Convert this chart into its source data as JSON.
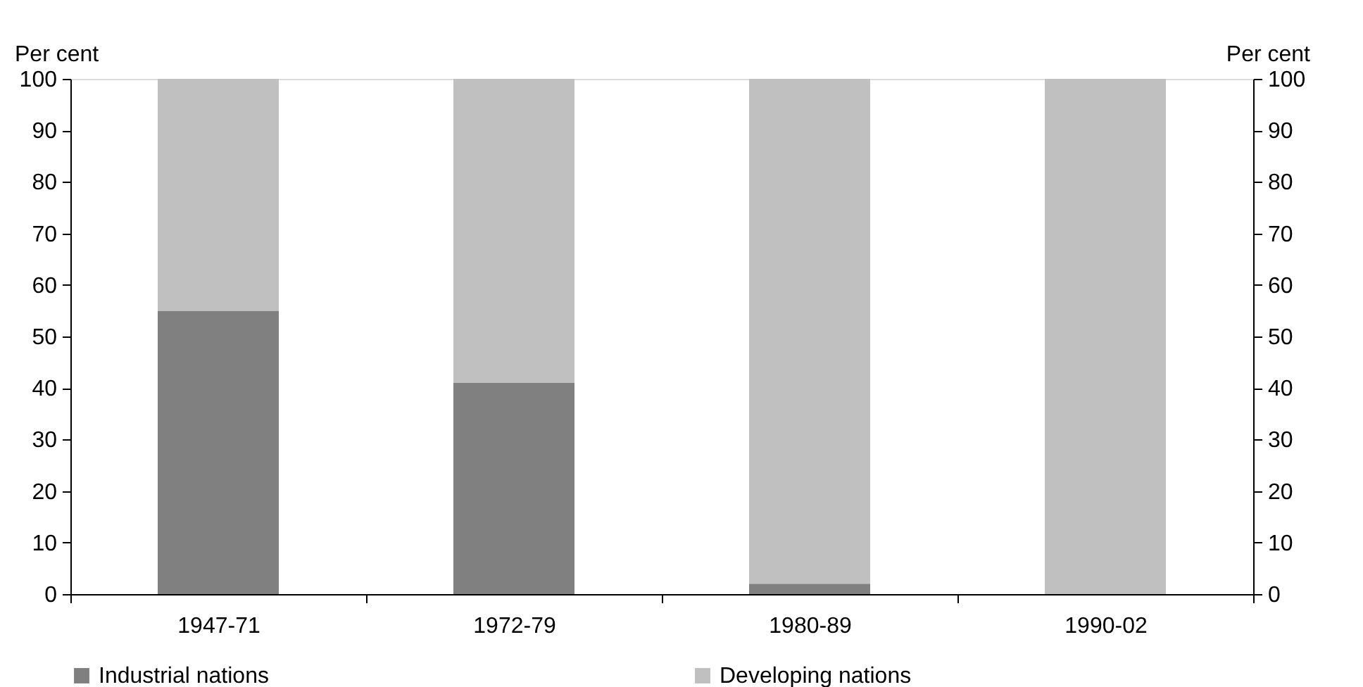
{
  "chart_data": {
    "type": "bar",
    "stacked": true,
    "categories": [
      "1947-71",
      "1972-79",
      "1980-89",
      "1990-02"
    ],
    "series": [
      {
        "name": "Industrial nations",
        "color": "#808080",
        "values": [
          55,
          41,
          2,
          0
        ]
      },
      {
        "name": "Developing nations",
        "color": "#c0c0c0",
        "values": [
          45,
          59,
          98,
          100
        ]
      }
    ],
    "ylabel": "Per cent",
    "y2label": "Per cent",
    "ylim": [
      0,
      100
    ],
    "yticks": [
      0,
      10,
      20,
      30,
      40,
      50,
      60,
      70,
      80,
      90,
      100
    ],
    "y2lim": [
      0,
      100
    ],
    "y2ticks": [
      0,
      10,
      20,
      30,
      40,
      50,
      60,
      70,
      80,
      90,
      100
    ],
    "grid": false,
    "legend": "bottom"
  }
}
